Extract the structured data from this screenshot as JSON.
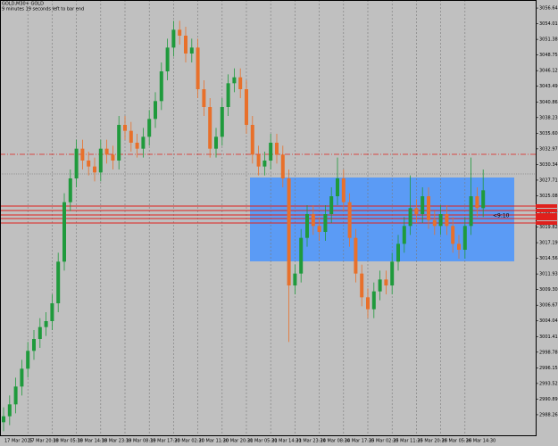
{
  "chart_data": {
    "type": "candlestick",
    "title": "GOLD,M30+ GOLD",
    "subtitle": "9 minutes 19 seconds left to bar end",
    "annotation": "<9:10",
    "categories": [
      "17 Mar 2025",
      null,
      null,
      null,
      "17 Mar 20:30",
      null,
      null,
      null,
      "18 Mar 05:30",
      null,
      null,
      null,
      "18 Mar 14:30",
      null,
      null,
      null,
      "18 Mar 23:30",
      null,
      null,
      null,
      "19 Mar 08:30",
      null,
      null,
      null,
      "19 Mar 17:30",
      null,
      null,
      null,
      "20 Mar 02:30",
      null,
      null,
      null,
      "20 Mar 11:30",
      null,
      null,
      null,
      "20 Mar 20:30",
      null,
      null,
      null,
      "21 Mar 05:30",
      null,
      null,
      null,
      "21 Mar 14:30",
      null,
      null,
      null,
      "21 Mar 23:30",
      null,
      null,
      null,
      "24 Mar 08:30",
      null,
      null,
      null,
      "24 Mar 17:30",
      null,
      null,
      null,
      "25 Mar 02:30",
      null,
      null,
      null,
      "25 Mar 11:30",
      null,
      null,
      null,
      "25 Mar 20:30",
      null,
      null,
      null,
      "26 Mar 05:30",
      null,
      null,
      null,
      "26 Mar 14:30",
      null,
      null,
      null
    ],
    "open": [
      2987,
      2988,
      2990,
      2993,
      2996,
      2999,
      3001,
      3003,
      3004,
      3007,
      3014,
      3024,
      3028,
      3033,
      3031,
      3030,
      3029,
      3033,
      3032,
      3031,
      3037,
      3036,
      3034,
      3033,
      3035,
      3038,
      3041,
      3046,
      3050,
      3053,
      3052,
      3049,
      3050,
      3043,
      3040,
      3033,
      3035,
      3040,
      3044,
      3045,
      3043,
      3037,
      3032,
      3030,
      3031,
      3034,
      3032,
      3028,
      3010,
      3012,
      3018,
      3022,
      3020,
      3019,
      3022,
      3025,
      3028,
      3024,
      3018,
      3012,
      3008,
      3006,
      3009,
      3011,
      3010,
      3014,
      3017,
      3020,
      3023,
      3022,
      3025,
      3021,
      3020,
      3022,
      3020,
      3017,
      3016,
      3020,
      3025,
      3023
    ],
    "high": [
      2989.5,
      2991.5,
      2994.5,
      2997.5,
      3000.5,
      3002.5,
      3004.5,
      3005.5,
      3008.5,
      3015.5,
      3025.5,
      3029.5,
      3034.5,
      3034.5,
      3032.5,
      3031.5,
      3034.5,
      3034.5,
      3033.5,
      3038.5,
      3038.5,
      3037.5,
      3035.5,
      3036.5,
      3039.5,
      3042.5,
      3047.5,
      3051.5,
      3054.5,
      3054.5,
      3053.5,
      3051.5,
      3051.5,
      3044.5,
      3041.5,
      3036.5,
      3041.5,
      3045.5,
      3046.5,
      3046.5,
      3044.5,
      3038.5,
      3033.5,
      3032.5,
      3035.5,
      3035.5,
      3033.5,
      3029.5,
      3013.5,
      3019.5,
      3023.5,
      3023.5,
      3021.5,
      3023.5,
      3026.5,
      3031.5,
      3029.5,
      3025.5,
      3019.5,
      3013.5,
      3009.5,
      3010.5,
      3012.5,
      3012.5,
      3015.5,
      3018.5,
      3021.5,
      3028.5,
      3024.5,
      3026.5,
      3026.5,
      3022.5,
      3023.5,
      3023.5,
      3021.5,
      3018.5,
      3021.5,
      3031.5,
      3026.5,
      3029.5
    ],
    "low": [
      2985.5,
      2986.5,
      2988.5,
      2991.5,
      2994.5,
      2997.5,
      2999.5,
      3001.5,
      3002.5,
      3005.5,
      3012.5,
      3022.5,
      3026.5,
      3029.5,
      3028.5,
      3027.5,
      3027.5,
      3030.5,
      3029.5,
      3029.5,
      3034.5,
      3032.5,
      3031.5,
      3031.5,
      3033.5,
      3036.5,
      3039.5,
      3044.5,
      3048.5,
      3050.5,
      3047.5,
      3047.5,
      3041.5,
      3038.5,
      3031.5,
      3031.5,
      3033.5,
      3038.5,
      3042.5,
      3041.5,
      3035.5,
      3030.5,
      3028.5,
      3028.5,
      3029.5,
      3030.5,
      3026.5,
      3000.5,
      3008.5,
      3010.5,
      3016.5,
      3018.5,
      3017.5,
      3017.5,
      3020.5,
      3023.5,
      3022.5,
      3016.5,
      3010.5,
      3006.5,
      3004.5,
      3004.5,
      3007.5,
      3008.5,
      3008.5,
      3012.5,
      3015.5,
      3018.5,
      3020.5,
      3020.5,
      3019.5,
      3018.5,
      3018.5,
      3018.5,
      3015.5,
      3014.5,
      3014.5,
      3018.5,
      3021.5,
      3021.5
    ],
    "close": [
      2988,
      2990,
      2993,
      2996,
      2999,
      3001,
      3003,
      3004,
      3007,
      3014,
      3024,
      3028,
      3033,
      3031,
      3030,
      3029,
      3033,
      3032,
      3031,
      3037,
      3036,
      3034,
      3033,
      3035,
      3038,
      3041,
      3046,
      3050,
      3053,
      3052,
      3049,
      3050,
      3043,
      3040,
      3033,
      3035,
      3040,
      3044,
      3045,
      3043,
      3037,
      3032,
      3030,
      3031,
      3034,
      3032,
      3028,
      3010,
      3012,
      3018,
      3022,
      3020,
      3019,
      3022,
      3025,
      3028,
      3024,
      3018,
      3012,
      3008,
      3006,
      3009,
      3011,
      3010,
      3014,
      3017,
      3020,
      3023,
      3022,
      3025,
      3021,
      3020,
      3022,
      3020,
      3017,
      3016,
      3020,
      3025,
      3023,
      3026
    ],
    "up_color": "#1f9a3c",
    "down_color": "#e8702a",
    "ylim": [
      2984.8,
      3058
    ],
    "yticks": [
      {
        "value": 3056.64,
        "label": "3056.64"
      },
      {
        "value": 3054.01,
        "label": "3054.01"
      },
      {
        "value": 3051.38,
        "label": "3051.38"
      },
      {
        "value": 3048.75,
        "label": "3048.75"
      },
      {
        "value": 3046.12,
        "label": "3046.12"
      },
      {
        "value": 3043.49,
        "label": "3043.49"
      },
      {
        "value": 3040.86,
        "label": "3040.86"
      },
      {
        "value": 3038.23,
        "label": "3038.23"
      },
      {
        "value": 3035.6,
        "label": "3035.60"
      },
      {
        "value": 3032.97,
        "label": "3032.97"
      },
      {
        "value": 3030.34,
        "label": "3030.34"
      },
      {
        "value": 3027.71,
        "label": "3027.71"
      },
      {
        "value": 3025.08,
        "label": "3025.08"
      },
      {
        "value": 3022.45,
        "label": "3022.45"
      },
      {
        "value": 3019.82,
        "label": "3019.82"
      },
      {
        "value": 3017.19,
        "label": "3017.19"
      },
      {
        "value": 3014.56,
        "label": "3014.56"
      },
      {
        "value": 3011.93,
        "label": "3011.93"
      },
      {
        "value": 3009.3,
        "label": "3009.30"
      },
      {
        "value": 3006.67,
        "label": "3006.67"
      },
      {
        "value": 3004.04,
        "label": "3004.04"
      },
      {
        "value": 3001.41,
        "label": "3001.41"
      },
      {
        "value": 2998.78,
        "label": "2998.78"
      },
      {
        "value": 2996.15,
        "label": "2996.15"
      },
      {
        "value": 2993.52,
        "label": "2993.52"
      },
      {
        "value": 2990.89,
        "label": "2990.89"
      },
      {
        "value": 2988.26,
        "label": "2988.26"
      }
    ],
    "zone": {
      "top": 3028.15,
      "bottom": 3014.05,
      "color": "#5b9bf5"
    },
    "levels": [
      3023.35,
      3022.6,
      3021.85,
      3021.25,
      3020.5
    ],
    "level_color": "#e0201c",
    "dashdot_level": 3032.05,
    "dotted_level": 3028.75,
    "grid": true
  }
}
